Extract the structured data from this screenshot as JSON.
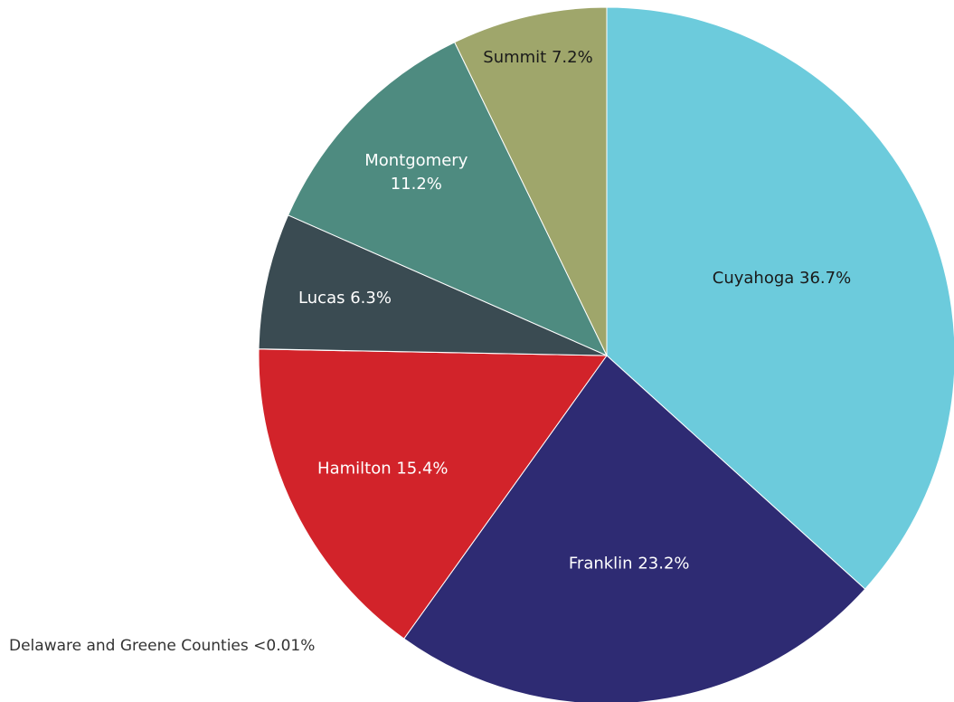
{
  "chart_data": {
    "type": "pie",
    "slices": [
      {
        "name": "Cuyahoga",
        "value": 36.7,
        "label": "Cuyahoga 36.7%",
        "color": "#6ccbdc",
        "text_color": "#1a1a1a"
      },
      {
        "name": "Franklin",
        "value": 23.2,
        "label": "Franklin 23.2%",
        "color": "#2e2b73",
        "text_color": "#ffffff"
      },
      {
        "name": "Hamilton",
        "value": 15.4,
        "label": "Hamilton 15.4%",
        "color": "#d2232a",
        "text_color": "#ffffff"
      },
      {
        "name": "Delaware and Greene Counties",
        "value": 0.01,
        "label": "Delaware and Greene Counties  <0.01%",
        "color": "#d2232a",
        "text_color": "#333333"
      },
      {
        "name": "Lucas",
        "value": 6.3,
        "label": "Lucas 6.3%",
        "color": "#3a4b52",
        "text_color": "#ffffff"
      },
      {
        "name": "Montgomery",
        "value": 11.2,
        "label_lines": [
          "Montgomery",
          "11.2%"
        ],
        "color": "#4e8b80",
        "text_color": "#ffffff"
      },
      {
        "name": "Summit",
        "value": 7.2,
        "label": "Summit 7.2%",
        "color": "#9fa66b",
        "text_color": "#1a1a1a"
      }
    ],
    "start_angle_deg": 0,
    "direction": "clockwise"
  }
}
